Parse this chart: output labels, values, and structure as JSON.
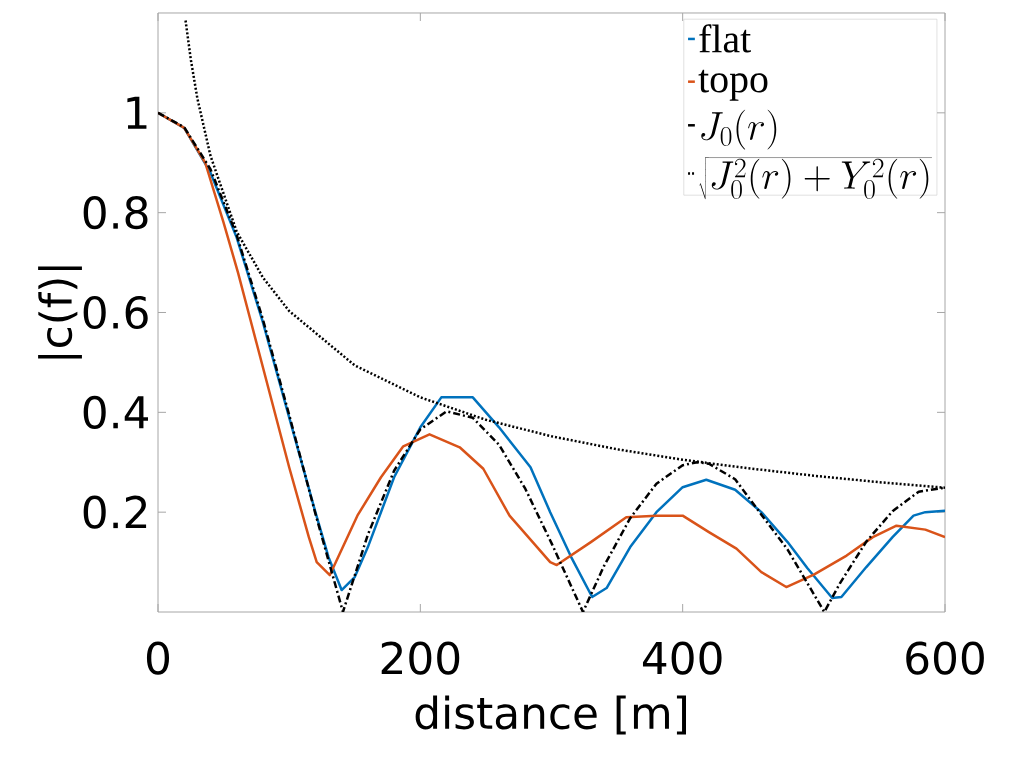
{
  "chart_data": {
    "type": "line",
    "xlabel": "distance [m]",
    "ylabel": "|c(f)|",
    "xlim": [
      0,
      600
    ],
    "ylim": [
      0,
      1.2
    ],
    "xticks": [
      0,
      200,
      400,
      600
    ],
    "yticks": [
      0.2,
      0.4,
      0.6,
      0.8,
      1
    ],
    "legend": "top right",
    "series": [
      {
        "name": "flat",
        "color": "#0072bd",
        "line_style": "solid",
        "x": [
          0,
          20,
          40,
          60,
          80,
          100,
          120,
          130,
          140,
          150,
          160,
          180,
          200,
          216,
          240,
          260,
          284,
          299,
          315,
          331,
          342,
          360,
          380,
          400,
          418,
          440,
          460,
          480,
          495,
          514,
          521,
          540,
          560,
          576,
          585,
          600
        ],
        "values": [
          1,
          0.97,
          0.88,
          0.75,
          0.58,
          0.39,
          0.2,
          0.11,
          0.044,
          0.07,
          0.13,
          0.27,
          0.37,
          0.43,
          0.43,
          0.37,
          0.29,
          0.2,
          0.11,
          0.03,
          0.048,
          0.13,
          0.2,
          0.25,
          0.265,
          0.245,
          0.2,
          0.14,
          0.088,
          0.028,
          0.03,
          0.09,
          0.15,
          0.193,
          0.2,
          0.203
        ]
      },
      {
        "name": "topo",
        "color": "#d95319",
        "line_style": "solid",
        "x": [
          0,
          20,
          36,
          50,
          61,
          70,
          85,
          100,
          115,
          121,
          131,
          152,
          170,
          187,
          207,
          230,
          248,
          268,
          299,
          304,
          330,
          357,
          380,
          400,
          420,
          441,
          460,
          479,
          500,
          525,
          545,
          563,
          585,
          600
        ],
        "values": [
          1,
          0.97,
          0.9,
          0.78,
          0.68,
          0.59,
          0.44,
          0.29,
          0.15,
          0.1,
          0.074,
          0.193,
          0.27,
          0.332,
          0.356,
          0.33,
          0.287,
          0.193,
          0.1,
          0.094,
          0.14,
          0.19,
          0.193,
          0.193,
          0.16,
          0.127,
          0.08,
          0.05,
          0.075,
          0.113,
          0.15,
          0.173,
          0.165,
          0.15
        ]
      },
      {
        "name": "J_0(r)",
        "color": "#000000",
        "line_style": "dashed",
        "x": [
          0,
          20,
          40,
          60,
          80,
          100,
          120,
          141,
          160,
          180,
          200,
          220,
          240,
          260,
          280,
          300,
          324,
          340,
          360,
          380,
          400,
          411,
          420,
          440,
          460,
          480,
          508,
          520,
          540,
          560,
          580,
          600
        ],
        "values": [
          1,
          0.971,
          0.887,
          0.755,
          0.586,
          0.395,
          0.197,
          0,
          0.155,
          0.283,
          0.366,
          0.402,
          0.389,
          0.335,
          0.247,
          0.138,
          0,
          0.092,
          0.188,
          0.257,
          0.294,
          0.3,
          0.297,
          0.266,
          0.195,
          0.125,
          0,
          0.058,
          0.141,
          0.202,
          0.241,
          0.249
        ]
      },
      {
        "name": "\\sqrt{J_0^2(r)+Y_0^2(r)}",
        "color": "#000000",
        "line_style": "dotted",
        "x": [
          21,
          25,
          30,
          40,
          60,
          80,
          100,
          150,
          200,
          250,
          300,
          350,
          400,
          450,
          500,
          550,
          600
        ],
        "values": [
          1.185,
          1.107,
          1.029,
          0.914,
          0.762,
          0.67,
          0.603,
          0.494,
          0.43,
          0.385,
          0.352,
          0.326,
          0.305,
          0.288,
          0.273,
          0.26,
          0.249
        ]
      }
    ]
  }
}
